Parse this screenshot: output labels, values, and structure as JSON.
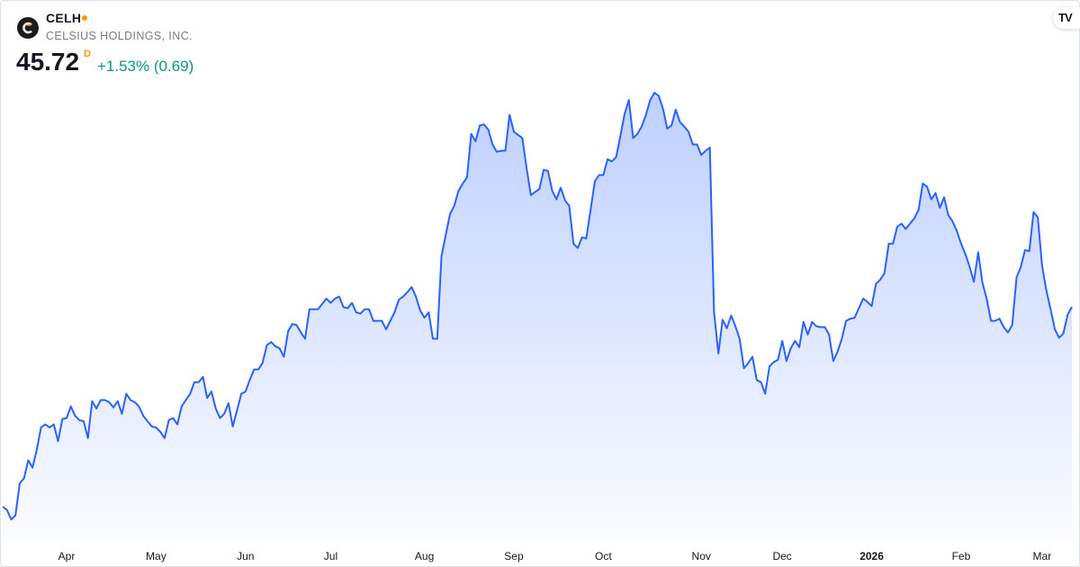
{
  "header": {
    "symbol": "CELH",
    "company": "CELSIUS HOLDINGS, INC.",
    "price": "45.72",
    "price_type": "D",
    "change": "+1.53% (0.69)",
    "logo_icon": "celsius-logo",
    "brand_icon": "tradingview-logo",
    "brand_text": "TV"
  },
  "colors": {
    "line": "#2962ff",
    "change_positive": "#089981",
    "market_status": "#ff9800"
  },
  "chart_data": {
    "type": "area",
    "title": "",
    "xlabel": "",
    "ylabel": "",
    "grid": false,
    "y_axis_labels": false,
    "values": [
      26.8,
      26.5,
      25.6,
      26.0,
      29.0,
      29.5,
      31.2,
      30.5,
      32.2,
      34.3,
      34.6,
      34.3,
      34.6,
      33.0,
      35.1,
      35.2,
      36.3,
      35.4,
      35.0,
      34.9,
      33.3,
      36.8,
      36.1,
      36.9,
      36.9,
      36.7,
      36.2,
      36.8,
      35.6,
      37.5,
      36.9,
      36.7,
      36.3,
      35.4,
      34.9,
      34.4,
      34.3,
      33.9,
      33.3,
      35.0,
      35.2,
      34.6,
      36.3,
      36.9,
      37.5,
      38.6,
      38.6,
      39.1,
      37.1,
      37.7,
      36.1,
      35.2,
      35.6,
      36.6,
      34.4,
      35.9,
      37.5,
      37.7,
      38.8,
      39.8,
      39.8,
      40.4,
      42.1,
      42.4,
      42.0,
      41.8,
      41.0,
      43.4,
      44.1,
      44.0,
      43.3,
      42.7,
      45.5,
      45.5,
      45.5,
      46.0,
      46.5,
      46.1,
      46.5,
      46.7,
      45.7,
      45.6,
      46.1,
      45.2,
      45.1,
      45.5,
      45.5,
      44.4,
      44.4,
      44.4,
      43.6,
      44.4,
      45.2,
      46.4,
      46.7,
      47.1,
      47.6,
      46.7,
      45.4,
      44.7,
      45.2,
      42.7,
      42.7,
      50.5,
      52.5,
      54.5,
      55.3,
      56.7,
      57.4,
      58.0,
      62.1,
      61.4,
      62.9,
      63.0,
      62.5,
      61.1,
      60.4,
      60.5,
      60.5,
      63.9,
      62.3,
      62.0,
      61.7,
      58.8,
      56.3,
      56.6,
      56.9,
      58.7,
      58.6,
      56.7,
      55.9,
      57.0,
      55.8,
      55.3,
      51.7,
      51.3,
      52.3,
      52.2,
      54.9,
      57.6,
      58.2,
      58.2,
      59.7,
      59.5,
      59.9,
      61.9,
      64.0,
      65.3,
      61.7,
      62.1,
      62.8,
      63.9,
      65.3,
      66.0,
      65.7,
      64.5,
      62.6,
      62.9,
      64.4,
      63.2,
      62.8,
      62.3,
      61.1,
      61.1,
      60.1,
      60.5,
      60.8,
      45.2,
      41.3,
      44.5,
      43.7,
      44.9,
      43.9,
      42.7,
      39.9,
      40.4,
      41.0,
      38.8,
      38.6,
      37.5,
      40.1,
      40.5,
      40.7,
      42.5,
      40.6,
      41.8,
      42.5,
      41.9,
      44.3,
      43.1,
      44.3,
      43.9,
      43.8,
      43.8,
      43.1,
      40.6,
      41.5,
      42.7,
      44.4,
      44.6,
      44.7,
      45.6,
      46.5,
      46.2,
      45.8,
      47.9,
      48.3,
      48.9,
      51.7,
      51.7,
      53.3,
      53.6,
      53.1,
      53.6,
      54.1,
      54.9,
      57.4,
      57.1,
      55.9,
      56.5,
      55.1,
      56.1,
      54.4,
      53.8,
      52.9,
      51.7,
      50.7,
      49.5,
      48.1,
      50.9,
      48.0,
      46.5,
      44.4,
      44.4,
      44.6,
      43.8,
      43.3,
      44.0,
      48.5,
      49.5,
      51.1,
      51.0,
      54.7,
      54.2,
      49.6,
      47.3,
      45.5,
      43.6,
      42.8,
      43.2,
      45.0,
      45.72
    ],
    "x_ticks": [
      {
        "label": "Apr",
        "index": 15,
        "bold": false
      },
      {
        "label": "May",
        "index": 36,
        "bold": false
      },
      {
        "label": "Jun",
        "index": 57,
        "bold": false
      },
      {
        "label": "Jul",
        "index": 77,
        "bold": false
      },
      {
        "label": "Aug",
        "index": 99,
        "bold": false
      },
      {
        "label": "Sep",
        "index": 120,
        "bold": false
      },
      {
        "label": "Oct",
        "index": 141,
        "bold": false
      },
      {
        "label": "Nov",
        "index": 164,
        "bold": false
      },
      {
        "label": "Dec",
        "index": 183,
        "bold": false
      },
      {
        "label": "2026",
        "index": 204,
        "bold": true
      },
      {
        "label": "Feb",
        "index": 225,
        "bold": false
      },
      {
        "label": "Mar",
        "index": 244,
        "bold": false
      }
    ]
  }
}
